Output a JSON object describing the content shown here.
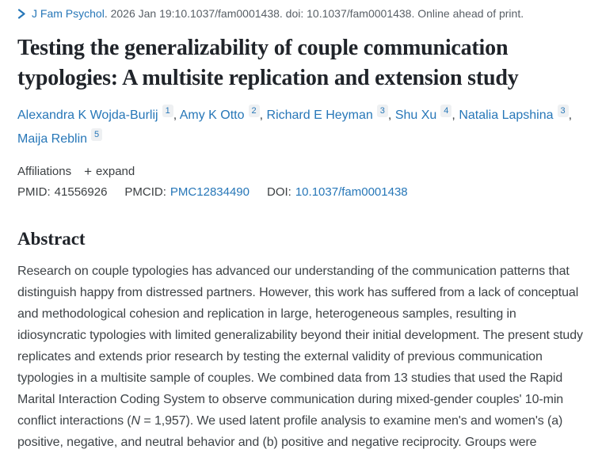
{
  "colors": {
    "link_blue": "#2777b8",
    "text_dark": "#20242a",
    "text_body": "#3e4347",
    "text_muted": "#585f66",
    "sup_badge_bg": "#eef0f2"
  },
  "citation": {
    "journal": "J Fam Psychol",
    "rest": ". 2026 Jan 19:10.1037/fam0001438. doi: 10.1037/fam0001438. Online ahead of print."
  },
  "title": "Testing the generalizability of couple communication typologies: A multisite replication and extension study",
  "authors": {
    "separator": ", ",
    "list": [
      {
        "name": "Alexandra K Wojda-Burlij",
        "sup": "1"
      },
      {
        "name": "Amy K Otto",
        "sup": "2"
      },
      {
        "name": "Richard E Heyman",
        "sup": "3"
      },
      {
        "name": "Shu Xu",
        "sup": "4"
      },
      {
        "name": "Natalia Lapshina",
        "sup": "3"
      },
      {
        "name": "Maija Reblin",
        "sup": "5"
      }
    ]
  },
  "affiliations": {
    "label": "Affiliations",
    "plus": "+",
    "expand_label": "expand"
  },
  "identifiers": {
    "pmid_label": "PMID:",
    "pmid_value": "41556926",
    "pmcid_label": "PMCID:",
    "pmcid_value": "PMC12834490",
    "doi_label": "DOI:",
    "doi_value": "10.1037/fam0001438"
  },
  "abstract": {
    "heading": "Abstract",
    "segments": [
      {
        "text": "Research on couple typologies has advanced our understanding of the communication patterns that distinguish happy from distressed partners. However, this work has suffered from a lack of conceptual and methodological cohesion and replication in large, heterogeneous samples, resulting in idiosyncratic typologies with limited generalizability beyond their initial development. The present study replicates and extends prior research by testing the external validity of previous communication typologies in a multisite sample of couples. We combined data from 13 studies that used the Rapid Marital Interaction Coding System to observe communication during mixed-gender couples' 10-min conflict interactions (",
        "italic": false
      },
      {
        "text": "N",
        "italic": true
      },
      {
        "text": " = 1,957). We used latent profile analysis to examine men's and women's (a) positive, negative, and neutral behavior and (b) positive and negative reciprocity. Groups were",
        "italic": false
      }
    ]
  }
}
